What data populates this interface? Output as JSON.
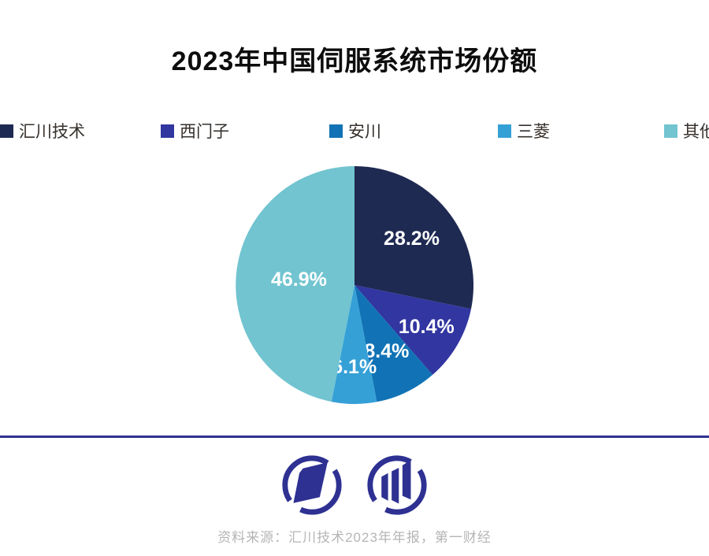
{
  "title": "2023年中国伺服系统市场份额",
  "source_note": "资料来源：汇川技术2023年年报，第一财经",
  "icons": {
    "left_logo": "yicai-emblem-icon",
    "right_logo": "yicai-bars-emblem-icon"
  },
  "brand": {
    "accent_indigo": "#2e3192",
    "source_text_color": "#b5b5b5"
  },
  "chart_data": {
    "type": "pie",
    "title": "2023年中国伺服系统市场份额",
    "categories": [
      "汇川技术",
      "西门子",
      "安川",
      "三菱",
      "其他"
    ],
    "values": [
      28.2,
      10.4,
      8.4,
      6.1,
      46.9
    ],
    "unit": "%",
    "colors": [
      "#1f2a52",
      "#3136a0",
      "#1173b6",
      "#35a0d6",
      "#71c4d0"
    ],
    "start_angle_deg": 0,
    "direction": "clockwise",
    "legend_position": "top",
    "label_color": "#ffffff",
    "label_radius": [
      0.62,
      0.7,
      0.62,
      0.69,
      0.47
    ]
  }
}
